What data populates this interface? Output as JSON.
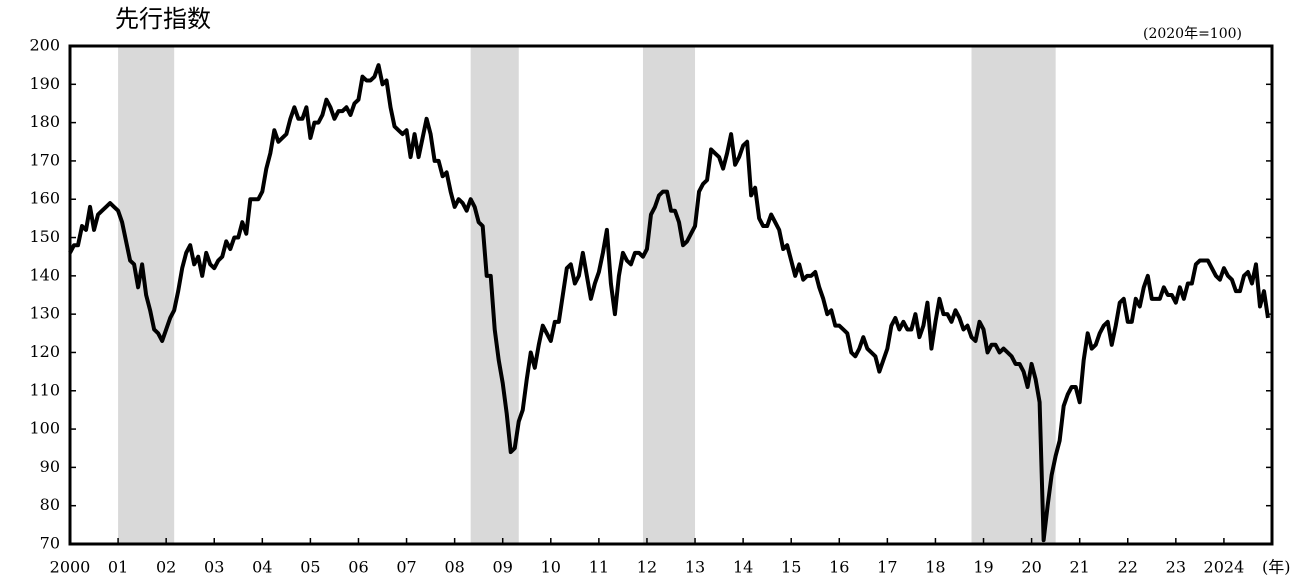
{
  "chart_data": {
    "type": "line",
    "title": "先行指数",
    "subtitle": "(2020年=100)",
    "x_unit": "(年)",
    "categories": [
      "2000",
      null,
      null,
      null,
      null,
      null,
      null,
      null,
      null,
      null,
      null,
      null,
      "01",
      null,
      null,
      null,
      null,
      null,
      null,
      null,
      null,
      null,
      null,
      null,
      "02",
      null,
      null,
      null,
      null,
      null,
      null,
      null,
      null,
      null,
      null,
      null,
      "03",
      null,
      null,
      null,
      null,
      null,
      null,
      null,
      null,
      null,
      null,
      null,
      "04",
      null,
      null,
      null,
      null,
      null,
      null,
      null,
      null,
      null,
      null,
      null,
      "05",
      null,
      null,
      null,
      null,
      null,
      null,
      null,
      null,
      null,
      null,
      null,
      "06",
      null,
      null,
      null,
      null,
      null,
      null,
      null,
      null,
      null,
      null,
      null,
      "07",
      null,
      null,
      null,
      null,
      null,
      null,
      null,
      null,
      null,
      null,
      null,
      "08",
      null,
      null,
      null,
      null,
      null,
      null,
      null,
      null,
      null,
      null,
      null,
      "09",
      null,
      null,
      null,
      null,
      null,
      null,
      null,
      null,
      null,
      null,
      null,
      "10",
      null,
      null,
      null,
      null,
      null,
      null,
      null,
      null,
      null,
      null,
      null,
      "11",
      null,
      null,
      null,
      null,
      null,
      null,
      null,
      null,
      null,
      null,
      null,
      "12",
      null,
      null,
      null,
      null,
      null,
      null,
      null,
      null,
      null,
      null,
      null,
      "13",
      null,
      null,
      null,
      null,
      null,
      null,
      null,
      null,
      null,
      null,
      null,
      "14",
      null,
      null,
      null,
      null,
      null,
      null,
      null,
      null,
      null,
      null,
      null,
      "15",
      null,
      null,
      null,
      null,
      null,
      null,
      null,
      null,
      null,
      null,
      null,
      "16",
      null,
      null,
      null,
      null,
      null,
      null,
      null,
      null,
      null,
      null,
      null,
      "17",
      null,
      null,
      null,
      null,
      null,
      null,
      null,
      null,
      null,
      null,
      null,
      "18",
      null,
      null,
      null,
      null,
      null,
      null,
      null,
      null,
      null,
      null,
      null,
      "19",
      null,
      null,
      null,
      null,
      null,
      null,
      null,
      null,
      null,
      null,
      null,
      "20",
      null,
      null,
      null,
      null,
      null,
      null,
      null,
      null,
      null,
      null,
      null,
      "21",
      null,
      null,
      null,
      null,
      null,
      null,
      null,
      null,
      null,
      null,
      null,
      "22",
      null,
      null,
      null,
      null,
      null,
      null,
      null,
      null,
      null,
      null,
      null,
      "23",
      null,
      null,
      null,
      null,
      null,
      null,
      null,
      null,
      null,
      null,
      null,
      "2024",
      null,
      null,
      null,
      null,
      null,
      null,
      null,
      null,
      null,
      null,
      null
    ],
    "values": [
      146,
      148,
      148,
      153,
      152,
      158,
      152,
      156,
      157,
      158,
      159,
      158,
      157,
      154,
      149,
      144,
      143,
      137,
      143,
      135,
      131,
      126,
      125,
      123,
      126,
      129,
      131,
      136,
      142,
      146,
      148,
      143,
      145,
      140,
      146,
      143,
      142,
      144,
      145,
      149,
      147,
      150,
      150,
      154,
      151,
      160,
      160,
      160,
      162,
      168,
      172,
      178,
      175,
      176,
      177,
      181,
      184,
      181,
      181,
      184,
      176,
      180,
      180,
      182,
      186,
      184,
      181,
      183,
      183,
      184,
      182,
      185,
      186,
      192,
      191,
      191,
      192,
      195,
      190,
      191,
      184,
      179,
      178,
      177,
      178,
      171,
      177,
      171,
      176,
      181,
      177,
      170,
      170,
      166,
      167,
      162,
      158,
      160,
      159,
      157,
      160,
      158,
      154,
      153,
      140,
      140,
      126,
      118,
      112,
      104,
      94,
      95,
      102,
      105,
      113,
      120,
      116,
      122,
      127,
      125,
      123,
      128,
      128,
      135,
      142,
      143,
      138,
      140,
      146,
      140,
      134,
      138,
      141,
      146,
      152,
      138,
      130,
      140,
      146,
      144,
      143,
      146,
      146,
      145,
      147,
      156,
      158,
      161,
      162,
      162,
      157,
      157,
      154,
      148,
      149,
      151,
      153,
      162,
      164,
      165,
      173,
      172,
      171,
      168,
      172,
      177,
      169,
      171,
      174,
      175,
      161,
      163,
      155,
      153,
      153,
      156,
      154,
      152,
      147,
      148,
      144,
      140,
      143,
      139,
      140,
      140,
      141,
      137,
      134,
      130,
      131,
      127,
      127,
      126,
      125,
      120,
      119,
      121,
      124,
      121,
      120,
      119,
      115,
      118,
      121,
      127,
      129,
      126,
      128,
      126,
      126,
      130,
      124,
      127,
      133,
      121,
      128,
      134,
      130,
      130,
      128,
      131,
      129,
      126,
      127,
      124,
      123,
      128,
      126,
      120,
      122,
      122,
      120,
      121,
      120,
      119,
      117,
      117,
      115,
      111,
      117,
      113,
      107,
      71,
      80,
      88,
      93,
      97,
      106,
      109,
      111,
      111,
      107,
      118,
      125,
      121,
      122,
      125,
      127,
      128,
      122,
      127,
      133,
      134,
      128,
      128,
      134,
      132,
      137,
      140,
      134,
      134,
      134,
      137,
      135,
      135,
      133,
      137,
      134,
      138,
      138,
      143,
      144,
      144,
      144,
      142,
      140,
      139,
      142,
      140,
      139,
      136,
      136,
      140,
      141,
      138,
      143,
      132,
      136,
      129
    ],
    "color": "#000000",
    "recessions": [
      {
        "start": 12,
        "end": 26
      },
      {
        "start": 100,
        "end": 112
      },
      {
        "start": 143,
        "end": 156
      },
      {
        "start": 225,
        "end": 246
      }
    ],
    "recession_color": "#d9d9d9",
    "ylim": [
      70,
      200
    ],
    "yticks": [
      70,
      80,
      90,
      100,
      110,
      120,
      130,
      140,
      150,
      160,
      170,
      180,
      190,
      200
    ]
  }
}
